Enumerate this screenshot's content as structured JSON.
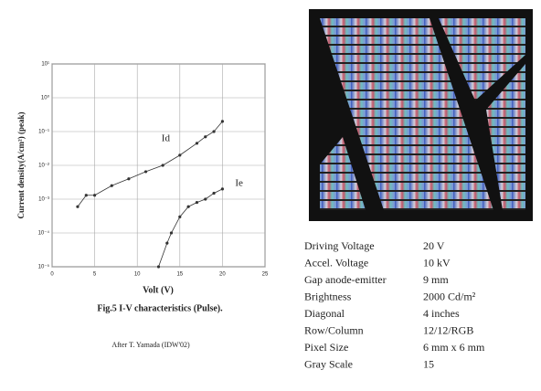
{
  "chart_data": {
    "type": "line",
    "xlabel": "Volt (V)",
    "ylabel": "Current density(A/cm²)   (peak)",
    "xlim": [
      0,
      25
    ],
    "xticks": [
      0,
      5,
      10,
      15,
      20,
      25
    ],
    "ylim": [
      1e-05,
      10
    ],
    "log_y": true,
    "grid": true,
    "yticks": [
      {
        "value": 1e-05,
        "label": "10⁻⁵"
      },
      {
        "value": 0.0001,
        "label": "10⁻⁴"
      },
      {
        "value": 0.001,
        "label": "10⁻³"
      },
      {
        "value": 0.01,
        "label": "10⁻²"
      },
      {
        "value": 0.1,
        "label": "10⁻¹"
      },
      {
        "value": 1,
        "label": "10⁰"
      },
      {
        "value": 10,
        "label": "10¹"
      }
    ],
    "series": [
      {
        "name": "Id",
        "color": "#333333",
        "x": [
          3,
          4,
          5,
          7,
          9,
          11,
          13,
          15,
          17,
          18,
          19,
          20
        ],
        "values": [
          0.0006,
          0.0013,
          0.0013,
          0.0025,
          0.004,
          0.0065,
          0.01,
          0.02,
          0.045,
          0.07,
          0.1,
          0.2
        ]
      },
      {
        "name": "Ie",
        "color": "#333333",
        "x": [
          12.5,
          13.5,
          14,
          15,
          16,
          17,
          18,
          19,
          20
        ],
        "values": [
          1e-05,
          5e-05,
          0.0001,
          0.0003,
          0.0006,
          0.0008,
          0.001,
          0.0015,
          0.002
        ]
      }
    ]
  },
  "caption": "Fig.5   I-V characteristics (Pulse).",
  "credit": "After T. Yamada (IDW'02)",
  "specs": [
    [
      "Driving Voltage",
      "20 V"
    ],
    [
      "Accel. Voltage",
      "10 kV"
    ],
    [
      "Gap anode-emitter",
      "9 mm"
    ],
    [
      "Brightness",
      "2000 Cd/m²"
    ],
    [
      "Diagonal",
      "4 inches"
    ],
    [
      "Row/Column",
      "12/12/RGB"
    ],
    [
      "Pixel Size",
      "6 mm x 6 mm"
    ],
    [
      "Gray Scale",
      "15"
    ]
  ]
}
